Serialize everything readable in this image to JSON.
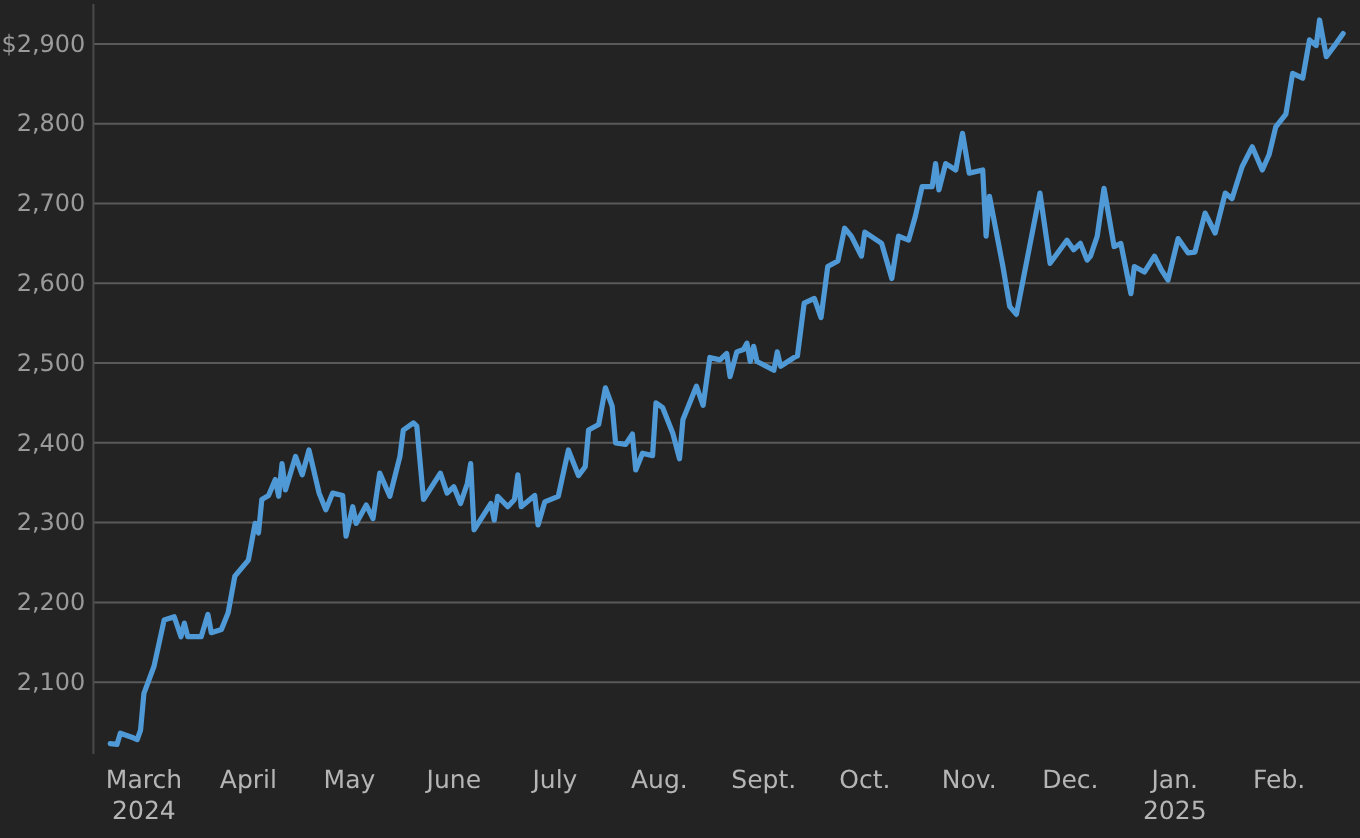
{
  "chart_data": {
    "type": "line",
    "xlim": [
      "2024-02-15",
      "2025-02-25"
    ],
    "ylim": [
      2010,
      2950
    ],
    "xticks": [
      {
        "value": "2024-03-01",
        "label": "March 2024"
      },
      {
        "value": "2024-04-01",
        "label": "April"
      },
      {
        "value": "2024-05-01",
        "label": "May"
      },
      {
        "value": "2024-06-01",
        "label": "June"
      },
      {
        "value": "2024-07-01",
        "label": "July"
      },
      {
        "value": "2024-08-01",
        "label": "Aug."
      },
      {
        "value": "2024-09-01",
        "label": "Sept."
      },
      {
        "value": "2024-10-01",
        "label": "Oct."
      },
      {
        "value": "2024-11-01",
        "label": "Nov."
      },
      {
        "value": "2024-12-01",
        "label": "Dec."
      },
      {
        "value": "2025-01-01",
        "label": "Jan. 2025"
      },
      {
        "value": "2025-02-01",
        "label": "Feb."
      }
    ],
    "yticks": [
      {
        "value": 2100,
        "label": "2,100"
      },
      {
        "value": 2200,
        "label": "2,200"
      },
      {
        "value": 2300,
        "label": "2,300"
      },
      {
        "value": 2400,
        "label": "2,400"
      },
      {
        "value": 2500,
        "label": "2,500"
      },
      {
        "value": 2600,
        "label": "2,600"
      },
      {
        "value": 2700,
        "label": "2,700"
      },
      {
        "value": 2800,
        "label": "2,800"
      },
      {
        "value": 2900,
        "label": "$2,900"
      }
    ],
    "grid": "y",
    "marker": "none",
    "line_style": "solid",
    "x": [
      "2024-02-20",
      "2024-02-22",
      "2024-02-23",
      "2024-02-27",
      "2024-02-28",
      "2024-02-29",
      "2024-03-01",
      "2024-03-04",
      "2024-03-07",
      "2024-03-10",
      "2024-03-12",
      "2024-03-13",
      "2024-03-14",
      "2024-03-18",
      "2024-03-20",
      "2024-03-21",
      "2024-03-24",
      "2024-03-26",
      "2024-03-28",
      "2024-04-01",
      "2024-04-03",
      "2024-04-04",
      "2024-04-05",
      "2024-04-07",
      "2024-04-09",
      "2024-04-10",
      "2024-04-11",
      "2024-04-12",
      "2024-04-15",
      "2024-04-17",
      "2024-04-19",
      "2024-04-22",
      "2024-04-24",
      "2024-04-26",
      "2024-04-29",
      "2024-04-30",
      "2024-05-02",
      "2024-05-03",
      "2024-05-06",
      "2024-05-08",
      "2024-05-10",
      "2024-05-13",
      "2024-05-16",
      "2024-05-17",
      "2024-05-20",
      "2024-05-21",
      "2024-05-23",
      "2024-05-28",
      "2024-05-30",
      "2024-06-01",
      "2024-06-03",
      "2024-06-05",
      "2024-06-06",
      "2024-06-07",
      "2024-06-12",
      "2024-06-13",
      "2024-06-14",
      "2024-06-17",
      "2024-06-19",
      "2024-06-20",
      "2024-06-21",
      "2024-06-25",
      "2024-06-26",
      "2024-06-28",
      "2024-07-02",
      "2024-07-05",
      "2024-07-08",
      "2024-07-10",
      "2024-07-11",
      "2024-07-14",
      "2024-07-16",
      "2024-07-18",
      "2024-07-19",
      "2024-07-22",
      "2024-07-24",
      "2024-07-25",
      "2024-07-27",
      "2024-07-30",
      "2024-07-31",
      "2024-08-02",
      "2024-08-05",
      "2024-08-07",
      "2024-08-08",
      "2024-08-12",
      "2024-08-14",
      "2024-08-16",
      "2024-08-19",
      "2024-08-21",
      "2024-08-22",
      "2024-08-24",
      "2024-08-26",
      "2024-08-27",
      "2024-08-28",
      "2024-08-29",
      "2024-08-30",
      "2024-09-04",
      "2024-09-05",
      "2024-09-06",
      "2024-09-10",
      "2024-09-11",
      "2024-09-13",
      "2024-09-16",
      "2024-09-18",
      "2024-09-20",
      "2024-09-23",
      "2024-09-25",
      "2024-09-27",
      "2024-09-30",
      "2024-10-01",
      "2024-10-06",
      "2024-10-09",
      "2024-10-11",
      "2024-10-14",
      "2024-10-16",
      "2024-10-18",
      "2024-10-21",
      "2024-10-22",
      "2024-10-23",
      "2024-10-25",
      "2024-10-28",
      "2024-10-30",
      "2024-11-01",
      "2024-11-05",
      "2024-11-06",
      "2024-11-07",
      "2024-11-11",
      "2024-11-13",
      "2024-11-15",
      "2024-11-22",
      "2024-11-25",
      "2024-11-30",
      "2024-12-02",
      "2024-12-04",
      "2024-12-06",
      "2024-12-07",
      "2024-12-09",
      "2024-12-11",
      "2024-12-14",
      "2024-12-16",
      "2024-12-19",
      "2024-12-20",
      "2024-12-23",
      "2024-12-26",
      "2024-12-28",
      "2024-12-30",
      "2025-01-02",
      "2025-01-05",
      "2025-01-07",
      "2025-01-10",
      "2025-01-13",
      "2025-01-16",
      "2025-01-18",
      "2025-01-21",
      "2025-01-24",
      "2025-01-27",
      "2025-01-29",
      "2025-01-31",
      "2025-02-03",
      "2025-02-05",
      "2025-02-08",
      "2025-02-10",
      "2025-02-12",
      "2025-02-13",
      "2025-02-15",
      "2025-02-18",
      "2025-02-20"
    ],
    "series": [
      {
        "color": "#4f9ad6",
        "values": [
          2023,
          2022,
          2036,
          2030,
          2028,
          2040,
          2086,
          2120,
          2178,
          2182,
          2157,
          2174,
          2157,
          2157,
          2185,
          2162,
          2166,
          2187,
          2233,
          2253,
          2299,
          2287,
          2329,
          2334,
          2354,
          2333,
          2374,
          2341,
          2383,
          2360,
          2391,
          2337,
          2316,
          2337,
          2334,
          2283,
          2320,
          2299,
          2322,
          2305,
          2362,
          2333,
          2383,
          2416,
          2425,
          2421,
          2329,
          2362,
          2337,
          2345,
          2324,
          2349,
          2374,
          2291,
          2324,
          2303,
          2333,
          2320,
          2329,
          2360,
          2320,
          2334,
          2297,
          2326,
          2333,
          2391,
          2359,
          2370,
          2416,
          2423,
          2469,
          2446,
          2400,
          2398,
          2411,
          2366,
          2387,
          2384,
          2450,
          2444,
          2412,
          2380,
          2429,
          2471,
          2447,
          2507,
          2504,
          2512,
          2483,
          2514,
          2517,
          2525,
          2502,
          2521,
          2502,
          2491,
          2514,
          2496,
          2507,
          2509,
          2575,
          2581,
          2557,
          2621,
          2628,
          2669,
          2659,
          2634,
          2664,
          2650,
          2606,
          2659,
          2654,
          2684,
          2721,
          2721,
          2750,
          2717,
          2750,
          2742,
          2788,
          2738,
          2742,
          2659,
          2709,
          2621,
          2571,
          2561,
          2713,
          2625,
          2654,
          2642,
          2650,
          2629,
          2634,
          2659,
          2719,
          2646,
          2650,
          2587,
          2621,
          2614,
          2634,
          2617,
          2604,
          2656,
          2638,
          2639,
          2688,
          2663,
          2713,
          2706,
          2746,
          2771,
          2742,
          2761,
          2796,
          2812,
          2863,
          2857,
          2905,
          2898,
          2930,
          2884,
          2901,
          2913
        ]
      }
    ]
  }
}
